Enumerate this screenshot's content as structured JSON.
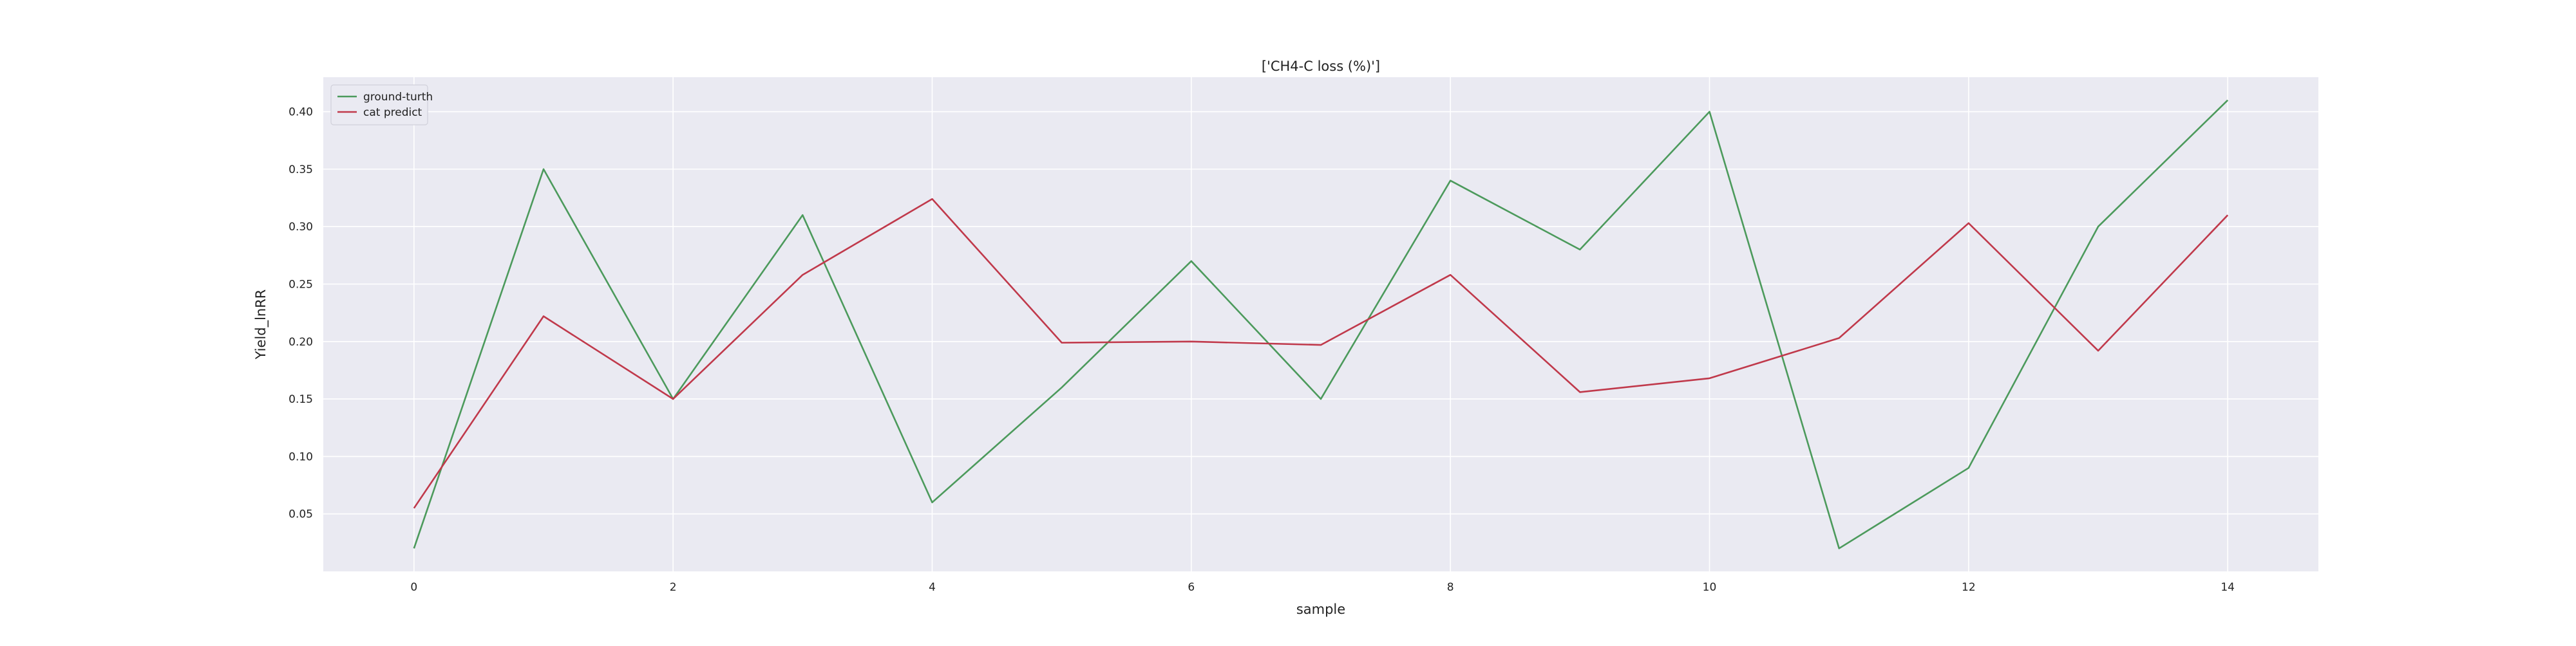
{
  "chart_data": {
    "type": "line",
    "title": "['CH4-C loss (%)']",
    "xlabel": "sample",
    "ylabel": "Yield_lnRR",
    "x": [
      0,
      1,
      2,
      3,
      4,
      5,
      6,
      7,
      8,
      9,
      10,
      11,
      12,
      13,
      14
    ],
    "xlim": [
      -0.7,
      14.7
    ],
    "ylim": [
      0.0,
      0.43
    ],
    "xticks": [
      0,
      2,
      4,
      6,
      8,
      10,
      12,
      14
    ],
    "yticks": [
      0.05,
      0.1,
      0.15,
      0.2,
      0.25,
      0.3,
      0.35,
      0.4
    ],
    "xtick_labels": [
      "0",
      "2",
      "4",
      "6",
      "8",
      "10",
      "12",
      "14"
    ],
    "ytick_labels": [
      "0.05",
      "0.10",
      "0.15",
      "0.20",
      "0.25",
      "0.30",
      "0.35",
      "0.40"
    ],
    "grid": true,
    "legend_position": "top-left",
    "background": "#eaeaf2",
    "series": [
      {
        "name": "ground-turth",
        "color": "#4c9a5c",
        "values": [
          0.02,
          0.35,
          0.15,
          0.31,
          0.06,
          0.16,
          0.27,
          0.15,
          0.34,
          0.28,
          0.4,
          0.02,
          0.09,
          0.3,
          0.41
        ]
      },
      {
        "name": "cat predict",
        "color": "#c0394b",
        "values": [
          0.055,
          0.222,
          0.15,
          0.258,
          0.324,
          0.199,
          0.2,
          0.197,
          0.258,
          0.156,
          0.168,
          0.203,
          0.303,
          0.192,
          0.31
        ]
      }
    ]
  }
}
